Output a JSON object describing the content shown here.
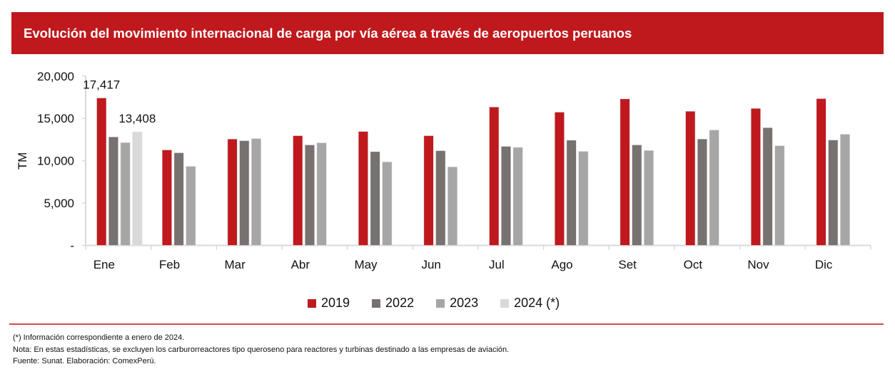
{
  "title": "Evolución del movimiento internacional de carga por vía aérea a través de aeropuertos peruanos",
  "chart_data": {
    "type": "bar",
    "title": "Evolución del movimiento internacional de carga por vía aérea a través de aeropuertos peruanos",
    "xlabel": "",
    "ylabel": "TM",
    "ylim": [
      0,
      20000
    ],
    "yticks": [
      0,
      5000,
      10000,
      15000,
      20000
    ],
    "ytick_labels": [
      "-",
      "5,000",
      "10,000",
      "15,000",
      "20,000"
    ],
    "categories": [
      "Ene",
      "Feb",
      "Mar",
      "Abr",
      "May",
      "Jun",
      "Jul",
      "Ago",
      "Set",
      "Oct",
      "Nov",
      "Dic"
    ],
    "series": [
      {
        "name": "2019",
        "color": "#c0191d",
        "values": [
          17417,
          11280,
          12570,
          12960,
          13460,
          12960,
          16350,
          15740,
          17310,
          15850,
          16190,
          17340
        ]
      },
      {
        "name": "2022",
        "color": "#777170",
        "values": [
          12820,
          10940,
          12370,
          11870,
          11080,
          11190,
          11700,
          12430,
          11870,
          12570,
          13910,
          12450
        ]
      },
      {
        "name": "2023",
        "color": "#a6a6a6",
        "values": [
          12150,
          9340,
          12620,
          12120,
          9870,
          9280,
          11580,
          11110,
          11220,
          13630,
          11780,
          13130
        ]
      },
      {
        "name": "2024 (*)",
        "color": "#d9d9d9",
        "values": [
          13408,
          null,
          null,
          null,
          null,
          null,
          null,
          null,
          null,
          null,
          null,
          null
        ]
      }
    ],
    "data_labels": [
      {
        "series": "2019",
        "category": "Ene",
        "text": "17,417"
      },
      {
        "series": "2024 (*)",
        "category": "Ene",
        "text": "13,408"
      }
    ],
    "legend_position": "bottom",
    "grid": false
  },
  "notes": [
    "(*) Información correspondiente a enero de 2024.",
    "Nota: En estas estadísticas, se excluyen los carburorreactores tipo queroseno para reactores y turbinas destinado a las empresas de aviación.",
    "Fuente: Sunat. Elaboración: ComexPerú."
  ]
}
